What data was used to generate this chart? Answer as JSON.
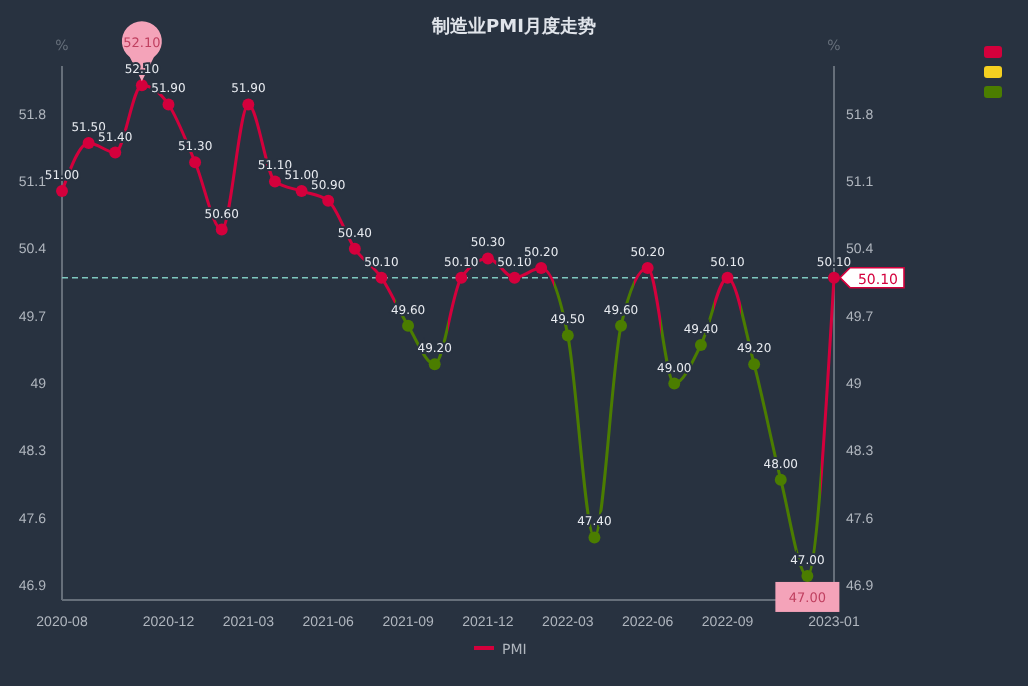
{
  "chart_data": {
    "type": "line",
    "title": "制造业PMI月度走势",
    "ylabel": "%",
    "y2label": "%",
    "categories": [
      "2020-08",
      null,
      null,
      null,
      "2020-12",
      null,
      null,
      "2021-03",
      null,
      null,
      "2021-06",
      null,
      null,
      "2021-09",
      null,
      null,
      "2021-12",
      null,
      null,
      "2022-03",
      null,
      null,
      "2022-06",
      null,
      null,
      "2022-09",
      null,
      null,
      null,
      "2023-01"
    ],
    "series": [
      {
        "name": "PMI",
        "values": [
          51.0,
          51.5,
          51.4,
          52.1,
          51.9,
          51.3,
          50.6,
          51.9,
          51.1,
          51.0,
          50.9,
          50.4,
          50.1,
          49.6,
          49.2,
          50.1,
          50.3,
          50.1,
          50.2,
          49.5,
          47.4,
          49.6,
          50.2,
          49.0,
          49.4,
          50.1,
          49.2,
          48.0,
          47.0,
          50.1
        ],
        "colors": [
          "#d4003c",
          "#d4003c",
          "#d4003c",
          "#d4003c",
          "#d4003c",
          "#d4003c",
          "#d4003c",
          "#d4003c",
          "#d4003c",
          "#d4003c",
          "#d4003c",
          "#d4003c",
          "#d4003c",
          "#4b7d00",
          "#4b7d00",
          "#d4003c",
          "#d4003c",
          "#d4003c",
          "#d4003c",
          "#4b7d00",
          "#4b7d00",
          "#4b7d00",
          "#d4003c",
          "#4b7d00",
          "#4b7d00",
          "#d4003c",
          "#4b7d00",
          "#4b7d00",
          "#4b7d00",
          "#d4003c"
        ],
        "value_labels": [
          "51.00",
          "51.50",
          "51.40",
          "52.10",
          "51.90",
          "51.30",
          "50.60",
          "51.90",
          "51.10",
          "51.00",
          "50.90",
          "50.40",
          "50.10",
          "49.60",
          "49.20",
          "50.10",
          "50.30",
          "50.10",
          "50.20",
          "49.50",
          "47.40",
          "49.60",
          "50.20",
          "49.00",
          "49.40",
          "50.10",
          "49.20",
          "48.00",
          "47.00",
          "50.10"
        ]
      }
    ],
    "ylim": [
      46.75,
      52.3
    ],
    "yticks": [
      46.9,
      47.6,
      48.3,
      49,
      49.7,
      50.4,
      51.1,
      51.8
    ],
    "y2lim": [
      46.75,
      52.3
    ],
    "y2ticks": [
      46.9,
      47.6,
      48.3,
      49,
      49.7,
      50.4,
      51.1,
      51.8
    ],
    "ref_lines": [
      {
        "axis": "y",
        "value": 50.1,
        "label": "50.10",
        "color": "#7fc8c0",
        "line_style": "dashed"
      }
    ],
    "annotations": [
      {
        "text": "52.10",
        "y": 52.1
      },
      {
        "text": "47.00",
        "y": 47.0
      }
    ],
    "marker": "circle",
    "legend": "bottom"
  }
}
